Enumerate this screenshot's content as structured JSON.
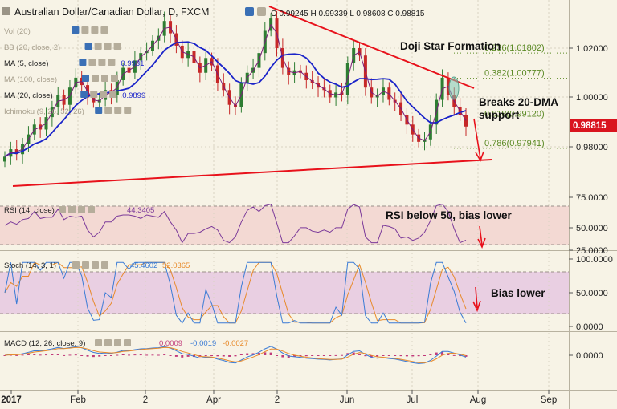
{
  "header": {
    "title": "Australian Dollar/Canadian Dollar, D, FXCM",
    "ohlc": "O 0.99245 H 0.99339 L 0.98608 C 0.98815",
    "last_price": "0.98815"
  },
  "indicators": [
    {
      "label": "Vol (20)",
      "value": ""
    },
    {
      "label": "BB (20, close, 2)",
      "value": ""
    },
    {
      "label": "MA (5, close)",
      "value": "0.9931"
    },
    {
      "label": "MA (100, close)",
      "value": ""
    },
    {
      "label": "MA (20, close)",
      "value": "0.9899"
    },
    {
      "label": "Ichimoku (9, 26, 52, 26)",
      "value": ""
    }
  ],
  "annotations": {
    "doji": "Doji Star Formation",
    "breaks_line1": "Breaks 20-DMA",
    "breaks_line2": "support",
    "rsi_note": "RSI below 50, bias lower",
    "stoch_note": "Bias lower"
  },
  "fib_levels": [
    {
      "label": "0.236(1.01802)",
      "value": 1.01802
    },
    {
      "label": "0.382(1.00777)",
      "value": 1.00777
    },
    {
      "label": "0.618(0.99120)",
      "value": 0.9912
    },
    {
      "label": "0.786(0.97941)",
      "value": 0.97941
    }
  ],
  "price_axis": [
    "1.02000",
    "1.00000",
    "0.98000"
  ],
  "rsi": {
    "label": "RSI (14, close)",
    "value": "44.3405",
    "axis": [
      "75.0000",
      "50.0000",
      "25.0000"
    ]
  },
  "stoch": {
    "label": "Stoch (14, 3, 1)",
    "value_k": "45.4602",
    "value_d": "52.0365",
    "axis": [
      "100.0000",
      "50.0000",
      "0.0000"
    ]
  },
  "macd": {
    "label": "MACD (12, 26, close, 9)",
    "value_hist": "0.0009",
    "value_macd": "-0.0019",
    "value_signal": "-0.0027",
    "axis": [
      "0.0000"
    ]
  },
  "time_axis": [
    "2017",
    "Feb",
    "2",
    "Apr",
    "2",
    "Jun",
    "Jul",
    "Aug",
    "Sep"
  ],
  "colors": {
    "up": "#2e7d32",
    "down": "#c62828",
    "ma20": "#1a23c9",
    "ma5": "#7a1c7a",
    "trend": "#e8111b",
    "fib": "#5b8a25",
    "rsi": "#7b3a9a",
    "stoch_k": "#3a7bd5",
    "stoch_d": "#e88a2a",
    "macd_hist": "#c13a7a"
  },
  "chart_data": {
    "type": "candlestick",
    "title": "Australian Dollar/Canadian Dollar, D, FXCM",
    "y_range": [
      0.97,
      1.033
    ],
    "close_series": [
      0.976,
      0.979,
      0.977,
      0.981,
      0.985,
      0.989,
      0.987,
      0.992,
      0.996,
      1.001,
      0.997,
      1.004,
      1.008,
      1.005,
      1.0,
      0.998,
      0.999,
      1.003,
      1.001,
      1.007,
      1.012,
      1.01,
      1.015,
      1.018,
      1.019,
      1.023,
      1.025,
      1.031,
      1.026,
      1.021,
      1.016,
      1.019,
      1.014,
      1.01,
      1.016,
      1.013,
      1.006,
      1.003,
      0.997,
      0.996,
      1.006,
      1.01,
      1.012,
      1.018,
      1.027,
      1.032,
      1.02,
      1.012,
      1.009,
      1.011,
      1.01,
      1.007,
      1.006,
      1.004,
      1.003,
      1.0,
      1.002,
      1.001,
      1.014,
      1.02,
      1.017,
      1.004,
      1.0,
      1.001,
      1.004,
      0.999,
      0.998,
      0.993,
      0.989,
      0.985,
      0.982,
      0.983,
      0.989,
      0.999,
      1.008,
      1.001,
      0.996,
      0.993,
      0.9882
    ]
  }
}
